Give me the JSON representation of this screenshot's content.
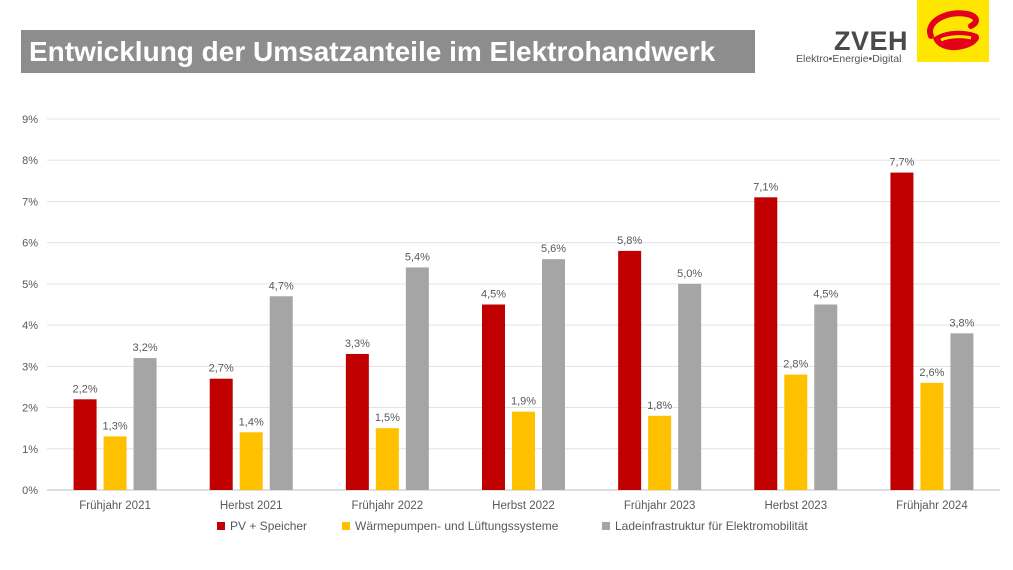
{
  "header": {
    "title": "Entwicklung der Umsatzanteile im Elektrohandwerk"
  },
  "logo": {
    "name": "ZVEH",
    "tagline": "Elektro•Energie•Digital",
    "mark_bg": "#ffe600",
    "mark_fg": "#e2001a"
  },
  "chart_data": {
    "type": "bar",
    "title": "Entwicklung der Umsatzanteile im Elektrohandwerk",
    "categories": [
      "Frühjahr 2021",
      "Herbst 2021",
      "Frühjahr 2022",
      "Herbst 2022",
      "Frühjahr 2023",
      "Herbst 2023",
      "Frühjahr 2024"
    ],
    "series": [
      {
        "name": "PV + Speicher",
        "color": "#c00000",
        "values": [
          2.2,
          2.7,
          3.3,
          4.5,
          5.8,
          7.1,
          7.7
        ],
        "labels": [
          "2,2%",
          "2,7%",
          "3,3%",
          "4,5%",
          "5,8%",
          "7,1%",
          "7,7%"
        ]
      },
      {
        "name": "Wärmepumpen- und Lüftungssysteme",
        "color": "#ffc000",
        "values": [
          1.3,
          1.4,
          1.5,
          1.9,
          1.8,
          2.8,
          2.6
        ],
        "labels": [
          "1,3%",
          "1,4%",
          "1,5%",
          "1,9%",
          "1,8%",
          "2,8%",
          "2,6%"
        ]
      },
      {
        "name": "Ladeinfrastruktur für Elektromobilität",
        "color": "#a5a5a5",
        "values": [
          3.2,
          4.7,
          5.4,
          5.6,
          5.0,
          4.5,
          3.8
        ],
        "labels": [
          "3,2%",
          "4,7%",
          "5,4%",
          "5,6%",
          "5,0%",
          "4,5%",
          "3,8%"
        ]
      }
    ],
    "ylim": [
      0,
      9
    ],
    "yticks": [
      0,
      1,
      2,
      3,
      4,
      5,
      6,
      7,
      8,
      9
    ],
    "ytick_labels": [
      "0%",
      "1%",
      "2%",
      "3%",
      "4%",
      "5%",
      "6%",
      "7%",
      "8%",
      "9%"
    ],
    "xlabel": "",
    "ylabel": "",
    "grid": true,
    "legend_position": "bottom"
  }
}
